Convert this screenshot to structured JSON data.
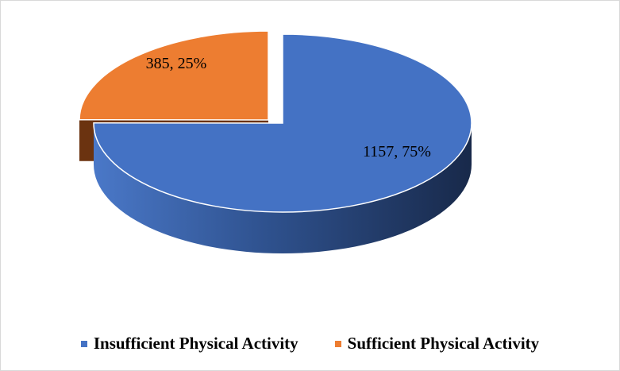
{
  "chart_data": {
    "type": "pie",
    "style": "3d-exploded",
    "title": "",
    "categories": [
      "Insufficient Physical Activity",
      "Sufficient Physical Activity"
    ],
    "values": [
      1157,
      385
    ],
    "percentages": [
      75,
      25
    ],
    "data_labels": [
      "1157, 75%",
      "385, 25%"
    ],
    "colors": [
      "#4472C4",
      "#ED7D31"
    ],
    "legend_position": "bottom"
  }
}
